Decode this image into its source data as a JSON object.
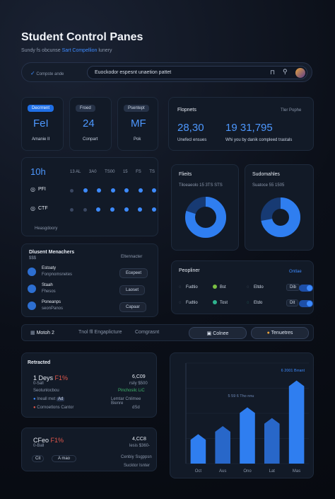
{
  "header": {
    "title": "Student Control Panes",
    "subtitle_pre": "Sundy fs obcunse",
    "subtitle_link": "Sart Compellion",
    "subtitle_post": "lunery"
  },
  "search": {
    "left_text": "Compste ande",
    "value": "Euockodor espesnt unaetion pattet"
  },
  "stat_cards": [
    {
      "badge": "Decrrrent",
      "value": "FeI",
      "label": "Amanie II"
    },
    {
      "badge": "Froed",
      "value": "24",
      "label": "Conpart"
    },
    {
      "badge": "Psentept",
      "value": "MF",
      "label": "Pok"
    }
  ],
  "payments": {
    "title": "Flopnets",
    "right": "Tler Pophe",
    "values": [
      {
        "value": "28,30",
        "label": "Unefecl ensues"
      },
      {
        "value": "19 31,795",
        "label": "Whi you by danik compleed trastals"
      }
    ]
  },
  "schedule": {
    "time": "10h",
    "cols": [
      "13 AL",
      "3A0",
      "TS00",
      "15",
      "FS",
      "TS"
    ],
    "rows": [
      {
        "label": "PFI"
      },
      {
        "label": "CTF"
      }
    ],
    "footer": "Heasgdoory"
  },
  "pie_left": {
    "title": "Flieits",
    "sub": "Tiloeaeolo 15 3TS  STS",
    "value": 0.8
  },
  "pie_right": {
    "title": "Sudomahles",
    "sub": "Suatoce 55 1505",
    "value": 0.72
  },
  "members": {
    "title": "Dlusent Menachers",
    "sub": "$$$",
    "right": "Eltennacter",
    "items": [
      {
        "name": "Estoaty",
        "desc": "Fonpnomsnetes",
        "button": "Ecepeet"
      },
      {
        "name": "Staah",
        "desc": "Fhesos",
        "button": "Laoset"
      },
      {
        "name": "Poneanps",
        "desc": "seonPanos",
        "button": "Capaar"
      }
    ]
  },
  "peopliner": {
    "title": "Peopliner",
    "right": "Ontlae",
    "rows": [
      {
        "a": "Fudtio",
        "b": "Bst",
        "c": "Eltdo",
        "tag": "Dib"
      },
      {
        "a": "Fudtio",
        "b": "Tost",
        "c": "Etdo",
        "tag": "Dit"
      }
    ]
  },
  "tabs": {
    "items": [
      "Motoh 2",
      "Tnol fll Engaplicture",
      "Comgrasnt"
    ],
    "right_buttons": [
      "Colnee",
      "Tenuetres"
    ]
  },
  "retracted": {
    "title": "Retracted",
    "d1_value": "1 Deys",
    "d1_pct": "F1%",
    "d1_sub": "0-5all",
    "d1_right_val": "6,C09",
    "d1_right_sub": "rsily $500",
    "d1_rows": [
      {
        "left": "Seotunlocbou",
        "right": "Pinchosilc LiC"
      },
      {
        "left": "Ineall met",
        "tag": "Ad",
        "right": "Lemtar Cnlimee Bienre"
      },
      {
        "left": "Cornoetlons Cantor",
        "right": "dSd"
      }
    ],
    "d2_value": "CFeo",
    "d2_pct": "F1%",
    "d2_sub": "0-Ball",
    "d2_right_val": "4,CC8",
    "d2_right_sub": "lesis $360-",
    "d2_tags": [
      "Cit",
      "A mao"
    ],
    "d2_rows": [
      "Cenbiy Ssgppsn",
      "Sucktor Isnter"
    ]
  },
  "bar_chart": {
    "chart_data": {
      "type": "bar",
      "categories": [
        "Oct",
        "Aus",
        "Ono",
        "Lat",
        "Mas"
      ],
      "values": [
        22,
        28,
        42,
        34,
        62
      ],
      "ylim": [
        0,
        75
      ],
      "annotations": [
        "6 2001 Brrant",
        "5 59 6 Tho nnu"
      ],
      "xlabel": "",
      "ylabel": ""
    }
  },
  "colors": {
    "accent": "#3d8bff",
    "card": "#121a27",
    "bg": "#0b0f18"
  }
}
